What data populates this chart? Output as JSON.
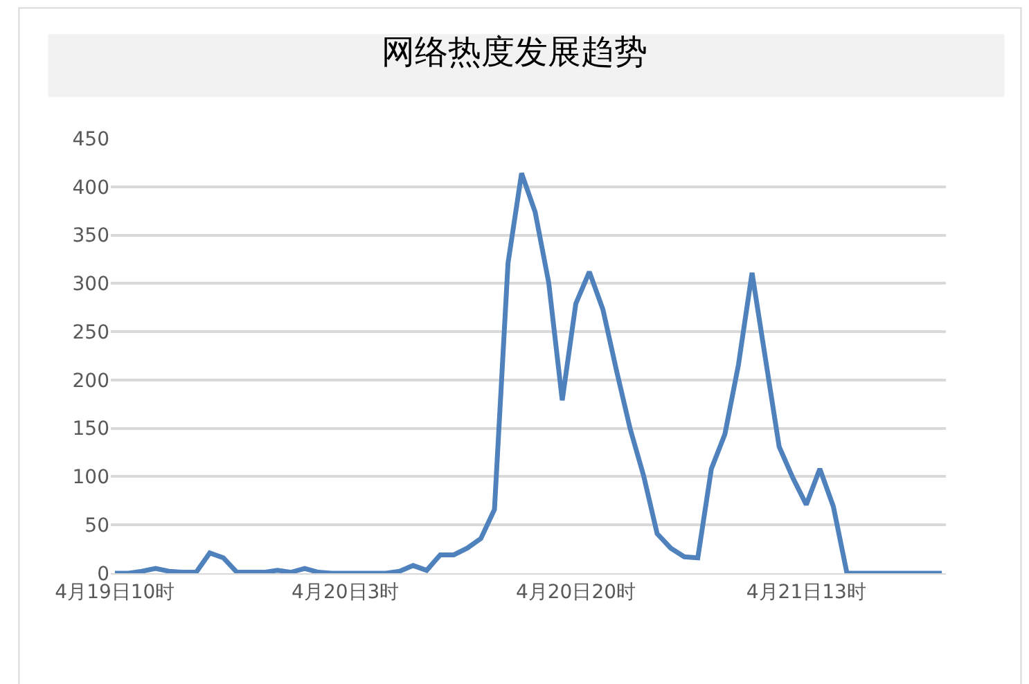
{
  "chart_data": {
    "type": "line",
    "title": "网络热度发展趋势",
    "categories": [
      "4月19日10时",
      null,
      null,
      null,
      null,
      null,
      null,
      null,
      null,
      null,
      null,
      null,
      null,
      null,
      null,
      null,
      null,
      "4月20日3时",
      null,
      null,
      null,
      null,
      null,
      null,
      null,
      null,
      null,
      null,
      null,
      null,
      null,
      null,
      null,
      null,
      "4月20日20时",
      null,
      null,
      null,
      null,
      null,
      null,
      null,
      null,
      null,
      null,
      null,
      null,
      null,
      null,
      null,
      null,
      "4月21日13时",
      null,
      null,
      null,
      null,
      null,
      null,
      null,
      null,
      null,
      null
    ],
    "series": [
      {
        "color": "#4f81bd",
        "values": [
          0,
          0,
          2,
          5,
          2,
          1,
          1,
          21,
          16,
          1,
          1,
          1,
          3,
          1,
          5,
          1,
          0,
          0,
          0,
          0,
          0,
          2,
          8,
          3,
          19,
          19,
          26,
          36,
          66,
          321,
          414,
          374,
          301,
          179,
          279,
          312,
          273,
          210,
          150,
          101,
          41,
          26,
          17,
          16,
          108,
          144,
          216,
          311,
          221,
          131,
          99,
          71,
          108,
          69,
          0,
          0,
          0,
          0,
          0,
          0,
          0,
          0
        ]
      }
    ],
    "ylim": [
      0,
      450
    ],
    "yticks": [
      0,
      50,
      100,
      150,
      200,
      250,
      300,
      350,
      400,
      450
    ],
    "grid": "y",
    "legend": false,
    "marker": "none",
    "line_style": "solid"
  }
}
